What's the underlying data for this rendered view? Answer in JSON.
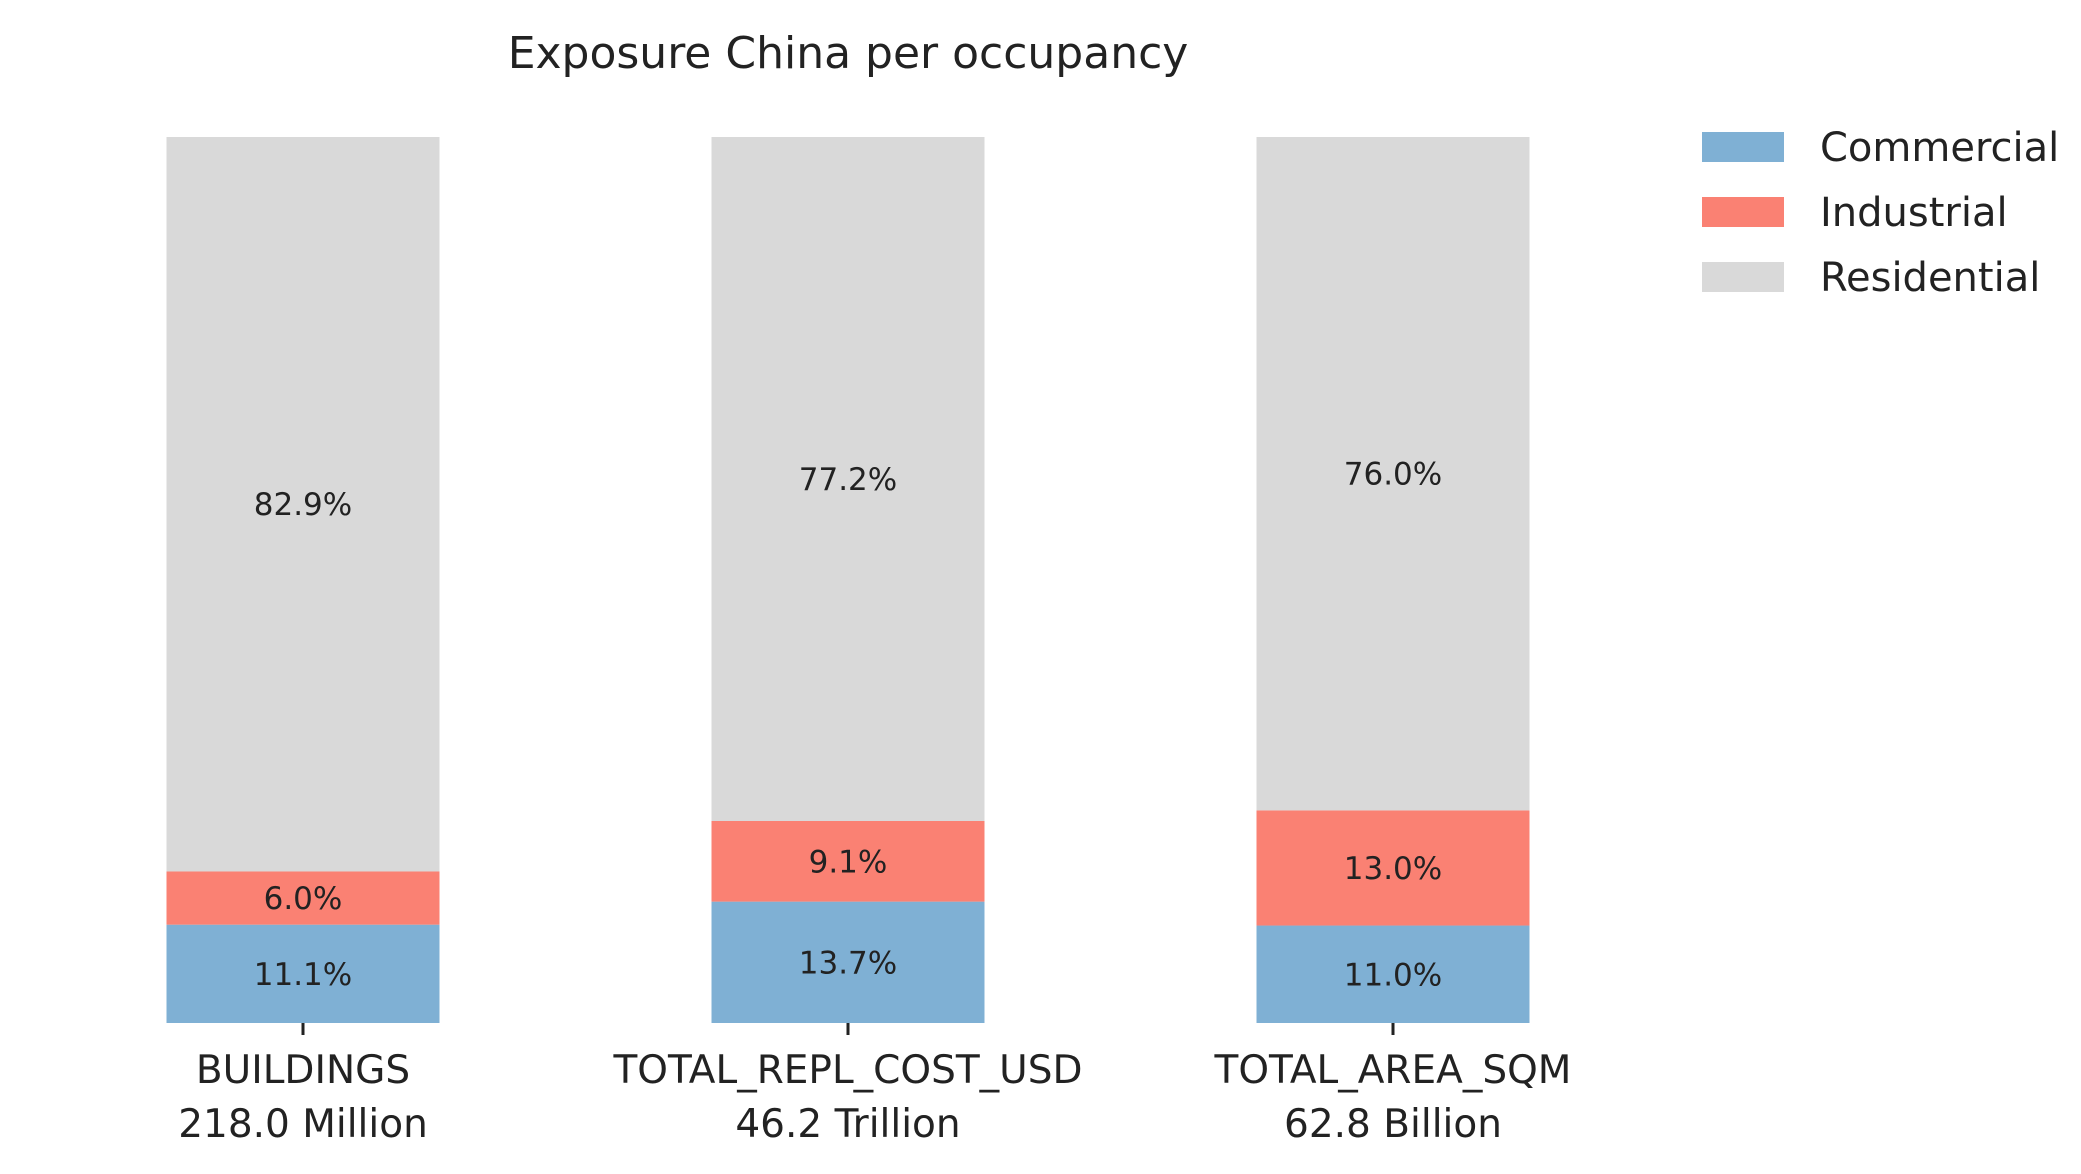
{
  "chart_data": {
    "type": "bar",
    "stacked": true,
    "normalized": true,
    "title": "Exposure China per occupancy",
    "categories": [
      {
        "name": "BUILDINGS",
        "total_label": "218.0 Million"
      },
      {
        "name": "TOTAL_REPL_COST_USD",
        "total_label": "46.2 Trillion"
      },
      {
        "name": "TOTAL_AREA_SQM",
        "total_label": "62.8 Billion"
      }
    ],
    "series": [
      {
        "name": "Commercial",
        "color": "#7fb0d4",
        "values": [
          11.1,
          13.7,
          11.0
        ],
        "labels": [
          "11.1%",
          "13.7%",
          "11.0%"
        ]
      },
      {
        "name": "Industrial",
        "color": "#fa8173",
        "values": [
          6.0,
          9.1,
          13.0
        ],
        "labels": [
          "6.0%",
          "9.1%",
          "13.0%"
        ]
      },
      {
        "name": "Residential",
        "color": "#d9d9d9",
        "values": [
          82.9,
          77.2,
          76.0
        ],
        "labels": [
          "82.9%",
          "77.2%",
          "76.0%"
        ]
      }
    ],
    "ylim": [
      0,
      100
    ],
    "y_axis_visible": false,
    "grid": false,
    "legend_position": "top-right"
  }
}
